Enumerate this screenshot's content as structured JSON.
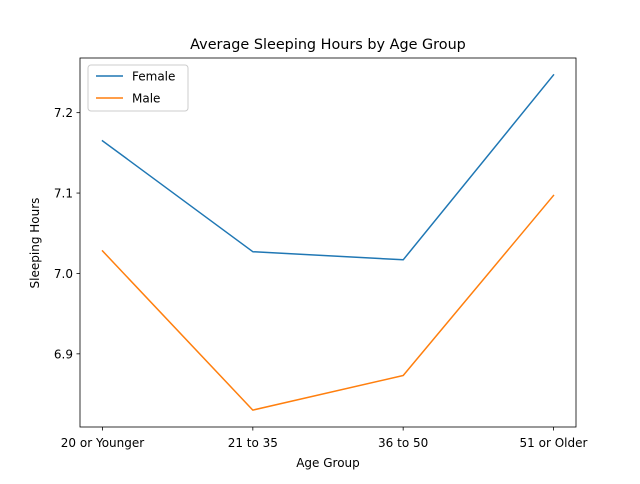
{
  "chart_data": {
    "type": "line",
    "title": "Average Sleeping Hours by Age Group",
    "xlabel": "Age Group",
    "ylabel": "Sleeping Hours",
    "categories": [
      "20 or Younger",
      "21 to 35",
      "36 to 50",
      "51 or Older"
    ],
    "series": [
      {
        "name": "Female",
        "color": "#1f77b4",
        "values": [
          7.165,
          7.027,
          7.017,
          7.247
        ]
      },
      {
        "name": "Male",
        "color": "#ff7f0e",
        "values": [
          7.028,
          6.83,
          6.873,
          7.097
        ]
      }
    ],
    "ylim": [
      6.809,
      7.268
    ],
    "yticks": [
      6.9,
      7.0,
      7.1,
      7.2
    ],
    "ytick_labels": [
      "6.9",
      "7.0",
      "7.1",
      "7.2"
    ],
    "grid": false,
    "legend_position": "top-left"
  }
}
